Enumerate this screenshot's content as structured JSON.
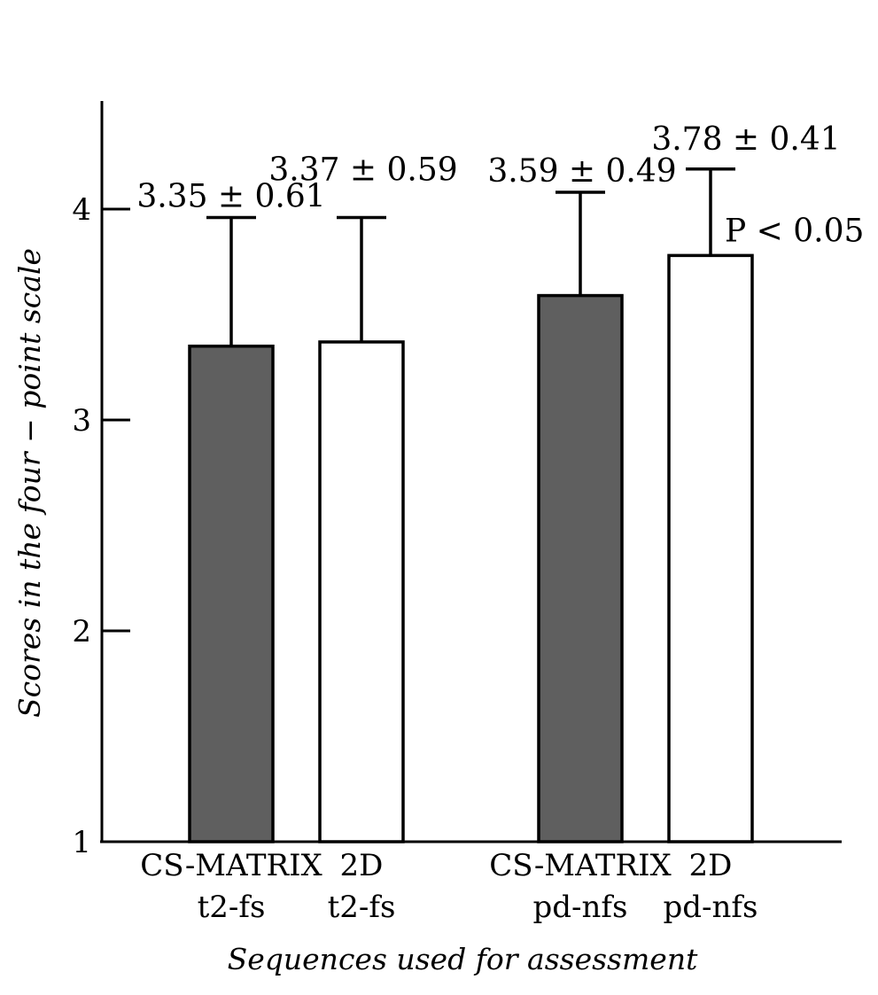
{
  "chart_data": {
    "type": "bar",
    "title": "",
    "xlabel": "Sequences used for assessment",
    "ylabel": "Scores in the four − point scale",
    "ylim": [
      1,
      4.5
    ],
    "yticks": [
      "1",
      "2",
      "3",
      "4"
    ],
    "grid": false,
    "bars": [
      {
        "line1": "CS-MATRIX",
        "line2": "t2-fs",
        "value": 3.35,
        "error": 0.61,
        "label": "3.35 ± 0.61",
        "fill": "#5f5f5f",
        "group": 0
      },
      {
        "line1": "2D",
        "line2": "t2-fs",
        "value": 3.37,
        "error": 0.59,
        "label": "3.37 ± 0.59",
        "fill": "#ffffff",
        "group": 0
      },
      {
        "line1": "CS-MATRIX",
        "line2": "pd-nfs",
        "value": 3.59,
        "error": 0.49,
        "label": "3.59 ± 0.49",
        "fill": "#5f5f5f",
        "group": 1
      },
      {
        "line1": "2D",
        "line2": "pd-nfs",
        "value": 3.78,
        "error": 0.41,
        "label": "3.78 ± 0.41",
        "fill": "#ffffff",
        "group": 1
      }
    ],
    "annotations": [
      {
        "text": "P < 0.05",
        "bar_index": 3
      }
    ]
  }
}
